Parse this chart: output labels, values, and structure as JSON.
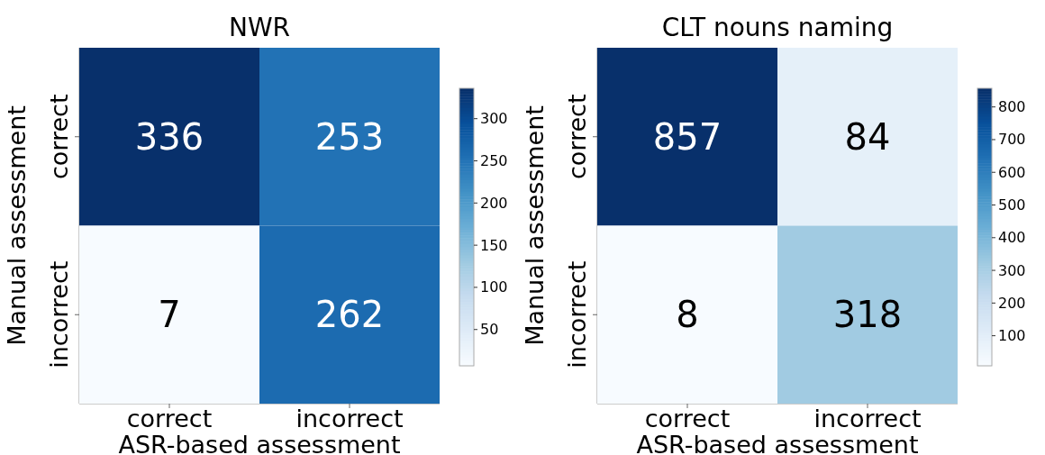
{
  "chart_data": [
    {
      "type": "heatmap",
      "title": "NWR",
      "xlabel": "ASR-based assessment",
      "ylabel": "Manual assessment",
      "categories": [
        "correct",
        "incorrect"
      ],
      "y_categories": [
        "correct",
        "incorrect"
      ],
      "cells": [
        [
          336,
          253
        ],
        [
          7,
          262
        ]
      ],
      "clim": [
        7,
        336
      ],
      "cticks": [
        50,
        100,
        150,
        200,
        250,
        300
      ],
      "data_labels": true
    },
    {
      "type": "heatmap",
      "title": "CLT nouns naming",
      "xlabel": "ASR-based assessment",
      "ylabel": "Manual assessment",
      "categories": [
        "correct",
        "incorrect"
      ],
      "y_categories": [
        "correct",
        "incorrect"
      ],
      "cells": [
        [
          857,
          84
        ],
        [
          8,
          318
        ]
      ],
      "clim": [
        8,
        857
      ],
      "cticks": [
        100,
        200,
        300,
        400,
        500,
        600,
        700,
        800
      ],
      "data_labels": true
    }
  ]
}
